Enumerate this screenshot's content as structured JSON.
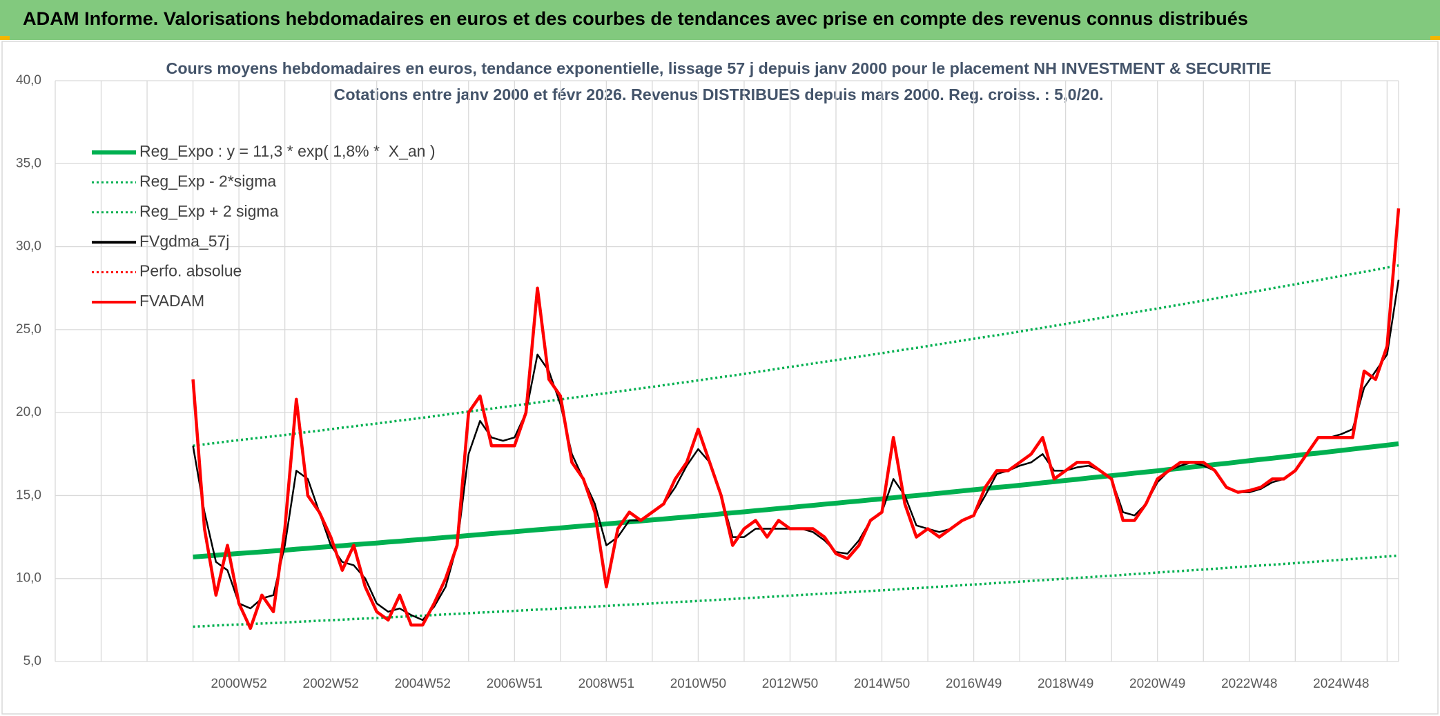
{
  "header": {
    "title": "ADAM Informe. Valorisations hebdomadaires en euros et des courbes de tendances avec prise en compte des revenus connus distribués"
  },
  "chart_data": {
    "type": "line",
    "title": "Cours moyens hebdomadaires en euros, tendance exponentielle, lissage 57 j depuis janv 2000 pour le placement NH INVESTMENT & SECURITIE",
    "subtitle": "Cotations entre janv 2000 et févr 2026. Revenus DISTRIBUES depuis mars 2000. Reg. croiss. : 5,0/20.",
    "ylim": [
      5,
      40
    ],
    "yticks": [
      {
        "value": 5,
        "label": "5,0"
      },
      {
        "value": 10,
        "label": "10,0"
      },
      {
        "value": 15,
        "label": "15,0"
      },
      {
        "value": 20,
        "label": "20,0"
      },
      {
        "value": 25,
        "label": "25,0"
      },
      {
        "value": 30,
        "label": "30,0"
      },
      {
        "value": 35,
        "label": "35,0"
      },
      {
        "value": 40,
        "label": "40,0"
      }
    ],
    "grid": true,
    "legend": "upper left",
    "categories": [
      null,
      null,
      null,
      null,
      null,
      null,
      null,
      null,
      null,
      null,
      null,
      null,
      null,
      null,
      null,
      null,
      "2000W52",
      null,
      null,
      null,
      null,
      null,
      null,
      null,
      "2002W52",
      null,
      null,
      null,
      null,
      null,
      null,
      null,
      "2004W52",
      null,
      null,
      null,
      null,
      null,
      null,
      null,
      "2006W51",
      null,
      null,
      null,
      null,
      null,
      null,
      null,
      "2008W51",
      null,
      null,
      null,
      null,
      null,
      null,
      null,
      "2010W50",
      null,
      null,
      null,
      null,
      null,
      null,
      null,
      "2012W50",
      null,
      null,
      null,
      null,
      null,
      null,
      null,
      "2014W50",
      null,
      null,
      null,
      null,
      null,
      null,
      null,
      "2016W49",
      null,
      null,
      null,
      null,
      null,
      null,
      null,
      "2018W49",
      null,
      null,
      null,
      null,
      null,
      null,
      null,
      "2020W49",
      null,
      null,
      null,
      null,
      null,
      null,
      null,
      "2022W48",
      null,
      null,
      null,
      null,
      null,
      null,
      null,
      "2024W48",
      null,
      null,
      null,
      null,
      null
    ],
    "series": [
      {
        "name": "Reg_Expo : y = 11,3 * exp( 1,8% *  X_an )",
        "color": "#00b050",
        "line_style": "solid",
        "line_width": "thick",
        "values": [
          null,
          null,
          null,
          null,
          null,
          null,
          null,
          null,
          null,
          null,
          null,
          null,
          11.3,
          11.35,
          11.4,
          11.46,
          11.51,
          11.56,
          11.61,
          11.66,
          11.71,
          11.77,
          11.82,
          11.88,
          11.93,
          11.98,
          12.04,
          12.09,
          12.14,
          12.2,
          12.25,
          12.31,
          12.36,
          12.42,
          12.48,
          12.53,
          12.59,
          12.65,
          12.71,
          12.76,
          12.82,
          12.88,
          12.94,
          12.99,
          13.05,
          13.11,
          13.17,
          13.23,
          13.29,
          13.35,
          13.41,
          13.47,
          13.53,
          13.59,
          13.65,
          13.71,
          13.77,
          13.83,
          13.9,
          13.96,
          14.02,
          14.09,
          14.15,
          14.22,
          14.28,
          14.35,
          14.41,
          14.48,
          14.54,
          14.61,
          14.67,
          14.74,
          14.8,
          14.87,
          14.94,
          15.0,
          15.07,
          15.14,
          15.21,
          15.28,
          15.35,
          15.42,
          15.49,
          15.55,
          15.62,
          15.69,
          15.77,
          15.84,
          15.91,
          15.98,
          16.06,
          16.13,
          16.2,
          16.27,
          16.35,
          16.42,
          16.49,
          16.57,
          16.64,
          16.72,
          16.79,
          16.87,
          16.94,
          17.02,
          17.1,
          17.18,
          17.25,
          17.33,
          17.41,
          17.49,
          17.56,
          17.64,
          17.72,
          17.8,
          17.88,
          17.96,
          18.04,
          18.12
        ]
      },
      {
        "name": "Reg_Exp - 2*sigma",
        "color": "#00b050",
        "line_style": "dotted",
        "line_width": "medium",
        "values": [
          null,
          null,
          null,
          null,
          null,
          null,
          null,
          null,
          null,
          null,
          null,
          null,
          7.1,
          7.13,
          7.17,
          7.2,
          7.23,
          7.26,
          7.29,
          7.32,
          7.35,
          7.39,
          7.42,
          7.46,
          7.49,
          7.52,
          7.56,
          7.59,
          7.62,
          7.66,
          7.69,
          7.73,
          7.76,
          7.8,
          7.84,
          7.87,
          7.91,
          7.95,
          7.98,
          8.02,
          8.05,
          8.09,
          8.13,
          8.16,
          8.2,
          8.24,
          8.27,
          8.31,
          8.35,
          8.39,
          8.43,
          8.46,
          8.5,
          8.54,
          8.58,
          8.61,
          8.65,
          8.69,
          8.73,
          8.77,
          8.81,
          8.85,
          8.89,
          8.93,
          8.97,
          9.01,
          9.05,
          9.09,
          9.13,
          9.17,
          9.21,
          9.25,
          9.29,
          9.33,
          9.38,
          9.42,
          9.46,
          9.51,
          9.55,
          9.6,
          9.64,
          9.68,
          9.73,
          9.77,
          9.81,
          9.86,
          9.9,
          9.95,
          9.99,
          10.04,
          10.08,
          10.13,
          10.17,
          10.22,
          10.27,
          10.31,
          10.36,
          10.41,
          10.45,
          10.5,
          10.54,
          10.59,
          10.64,
          10.69,
          10.74,
          10.79,
          10.83,
          10.88,
          10.93,
          10.98,
          11.03,
          11.08,
          11.13,
          11.18,
          11.23,
          11.28,
          11.33,
          11.38
        ]
      },
      {
        "name": "Reg_Exp + 2 sigma",
        "color": "#00b050",
        "line_style": "dotted",
        "line_width": "medium",
        "values": [
          null,
          null,
          null,
          null,
          null,
          null,
          null,
          null,
          null,
          null,
          null,
          null,
          18.0,
          18.09,
          18.17,
          18.26,
          18.34,
          18.42,
          18.5,
          18.57,
          18.65,
          18.74,
          18.83,
          18.91,
          19.0,
          19.09,
          19.17,
          19.26,
          19.34,
          19.43,
          19.52,
          19.6,
          19.69,
          19.78,
          19.88,
          19.97,
          20.06,
          20.15,
          20.24,
          20.33,
          20.42,
          20.51,
          20.61,
          20.7,
          20.79,
          20.89,
          20.98,
          21.08,
          21.17,
          21.27,
          21.36,
          21.46,
          21.55,
          21.65,
          21.75,
          21.84,
          21.94,
          22.04,
          22.14,
          22.23,
          22.33,
          22.44,
          22.54,
          22.65,
          22.75,
          22.85,
          22.96,
          23.06,
          23.16,
          23.27,
          23.37,
          23.48,
          23.58,
          23.69,
          23.8,
          23.9,
          24.01,
          24.12,
          24.23,
          24.34,
          24.45,
          24.56,
          24.66,
          24.77,
          24.88,
          25.0,
          25.11,
          25.23,
          25.34,
          25.46,
          25.58,
          25.69,
          25.81,
          25.93,
          26.04,
          26.16,
          26.27,
          26.39,
          26.51,
          26.63,
          26.75,
          26.87,
          27.0,
          27.12,
          27.24,
          27.36,
          27.49,
          27.61,
          27.73,
          27.86,
          27.98,
          28.11,
          28.23,
          28.36,
          28.48,
          28.61,
          28.74,
          28.87
        ]
      },
      {
        "name": "FVgdma_57j",
        "color": "#000000",
        "line_style": "solid",
        "line_width": "thin",
        "values": [
          null,
          null,
          null,
          null,
          null,
          null,
          null,
          null,
          null,
          null,
          null,
          null,
          18,
          14,
          11,
          10.5,
          8.5,
          8.2,
          8.8,
          9,
          12,
          16.5,
          16,
          14,
          12,
          11,
          10.8,
          10,
          8.5,
          8,
          8.2,
          7.8,
          7.5,
          8.3,
          9.5,
          12,
          17.5,
          19.5,
          18.5,
          18.3,
          18.5,
          20,
          23.5,
          22.5,
          20.5,
          17.5,
          16,
          14.5,
          12,
          12.5,
          13.5,
          13.5,
          14,
          14.5,
          15.5,
          16.8,
          17.8,
          17,
          15,
          12.5,
          12.5,
          13,
          13,
          13,
          13,
          13,
          12.8,
          12.3,
          11.6,
          11.5,
          12.3,
          13.5,
          14,
          16,
          15,
          13.2,
          13,
          12.8,
          13,
          13.5,
          13.8,
          15,
          16.3,
          16.5,
          16.8,
          17,
          17.5,
          16.5,
          16.5,
          16.7,
          16.8,
          16.5,
          16,
          14,
          13.8,
          14.5,
          15.8,
          16.5,
          16.8,
          17,
          16.8,
          16.5,
          15.5,
          15.2,
          15.2,
          15.4,
          15.8,
          16,
          16.5,
          17.5,
          18.5,
          18.5,
          18.7,
          19,
          21.5,
          22.5,
          23.5,
          28
        ]
      },
      {
        "name": "Perfo. absolue",
        "color": "#ff0000",
        "line_style": "dotted",
        "line_width": "thin"
      },
      {
        "name": "FVADAM",
        "color": "#ff0000",
        "line_style": "solid",
        "line_width": "bold",
        "values": [
          null,
          null,
          null,
          null,
          null,
          null,
          null,
          null,
          null,
          null,
          null,
          null,
          22,
          13,
          9,
          12,
          8.5,
          7,
          9,
          8,
          13,
          20.8,
          15,
          14,
          12.5,
          10.5,
          12,
          9.5,
          8,
          7.5,
          9,
          7.2,
          7.2,
          8.5,
          10,
          12,
          20,
          21,
          18,
          18,
          18,
          20,
          27.5,
          22,
          21,
          17,
          16,
          14,
          9.5,
          13,
          14,
          13.5,
          14,
          14.5,
          16,
          17,
          19,
          17,
          15,
          12,
          13,
          13.5,
          12.5,
          13.5,
          13,
          13,
          13,
          12.5,
          11.5,
          11.2,
          12,
          13.5,
          14,
          18.5,
          14.5,
          12.5,
          13,
          12.5,
          13,
          13.5,
          13.8,
          15.5,
          16.5,
          16.5,
          17,
          17.5,
          18.5,
          16,
          16.5,
          17,
          17,
          16.5,
          16,
          13.5,
          13.5,
          14.5,
          16,
          16.5,
          17,
          17,
          17,
          16.5,
          15.5,
          15.2,
          15.3,
          15.5,
          16,
          16,
          16.5,
          17.5,
          18.5,
          18.5,
          18.5,
          18.5,
          22.5,
          22,
          24,
          32.3
        ]
      }
    ]
  }
}
